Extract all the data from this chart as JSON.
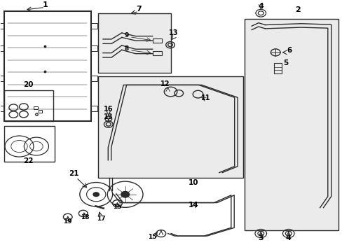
{
  "bg_color": "#ffffff",
  "line_color": "#2a2a2a",
  "box_bg": "#e8e8e8"
}
